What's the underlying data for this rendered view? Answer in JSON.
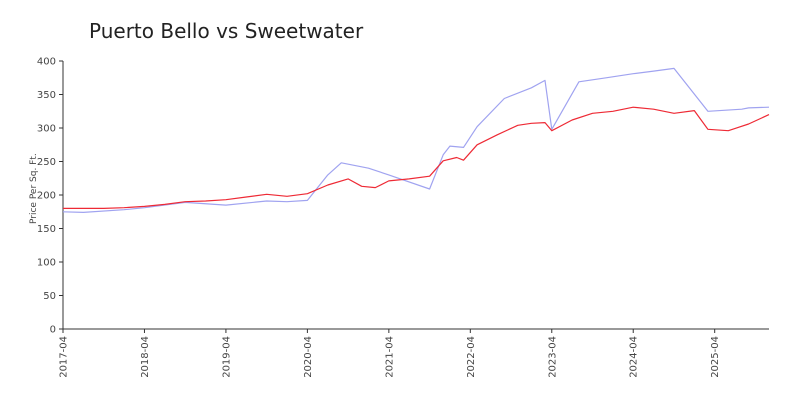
{
  "chart_data": {
    "type": "line",
    "title": "Puerto Bello vs Sweetwater",
    "xlabel": "",
    "ylabel": "Price Per Sq. Ft.",
    "ylim": [
      0,
      400
    ],
    "xlim": [
      "2017-04",
      "2025-12"
    ],
    "y_ticks": [
      0,
      50,
      100,
      150,
      200,
      250,
      300,
      350,
      400
    ],
    "x_ticks": [
      "2017-04",
      "2018-04",
      "2019-04",
      "2020-04",
      "2021-04",
      "2022-04",
      "2023-04",
      "2024-04",
      "2025-04"
    ],
    "grid": false,
    "legend": "none",
    "series": [
      {
        "color": "#ee2a35",
        "points": [
          [
            "2017-04",
            180
          ],
          [
            "2017-10",
            180
          ],
          [
            "2018-01",
            181
          ],
          [
            "2018-04",
            183
          ],
          [
            "2018-07",
            186
          ],
          [
            "2018-10",
            190
          ],
          [
            "2019-01",
            191
          ],
          [
            "2019-04",
            193
          ],
          [
            "2019-07",
            197
          ],
          [
            "2019-10",
            201
          ],
          [
            "2020-01",
            198
          ],
          [
            "2020-04",
            202
          ],
          [
            "2020-07",
            215
          ],
          [
            "2020-10",
            224
          ],
          [
            "2020-12",
            213
          ],
          [
            "2021-02",
            211
          ],
          [
            "2021-04",
            221
          ],
          [
            "2021-07",
            224
          ],
          [
            "2021-10",
            228
          ],
          [
            "2021-12",
            251
          ],
          [
            "2022-02",
            256
          ],
          [
            "2022-03",
            252
          ],
          [
            "2022-05",
            275
          ],
          [
            "2022-08",
            290
          ],
          [
            "2022-11",
            304
          ],
          [
            "2023-01",
            307
          ],
          [
            "2023-03",
            308
          ],
          [
            "2023-04",
            296
          ],
          [
            "2023-07",
            312
          ],
          [
            "2023-10",
            322
          ],
          [
            "2024-01",
            325
          ],
          [
            "2024-04",
            331
          ],
          [
            "2024-07",
            328
          ],
          [
            "2024-10",
            322
          ],
          [
            "2025-01",
            326
          ],
          [
            "2025-03",
            298
          ],
          [
            "2025-06",
            296
          ],
          [
            "2025-09",
            306
          ],
          [
            "2025-12",
            320
          ]
        ]
      },
      {
        "color": "#a0a3f0",
        "points": [
          [
            "2017-04",
            175
          ],
          [
            "2017-07",
            174
          ],
          [
            "2018-01",
            178
          ],
          [
            "2018-04",
            181
          ],
          [
            "2018-10",
            189
          ],
          [
            "2019-04",
            185
          ],
          [
            "2019-10",
            191
          ],
          [
            "2020-01",
            190
          ],
          [
            "2020-04",
            192
          ],
          [
            "2020-07",
            230
          ],
          [
            "2020-09",
            248
          ],
          [
            "2021-01",
            240
          ],
          [
            "2021-04",
            230
          ],
          [
            "2021-10",
            209
          ],
          [
            "2021-12",
            260
          ],
          [
            "2022-01",
            273
          ],
          [
            "2022-03",
            271
          ],
          [
            "2022-05",
            302
          ],
          [
            "2022-09",
            344
          ],
          [
            "2023-01",
            360
          ],
          [
            "2023-03",
            371
          ],
          [
            "2023-04",
            298
          ],
          [
            "2023-08",
            369
          ],
          [
            "2023-12",
            375
          ],
          [
            "2024-04",
            381
          ],
          [
            "2024-07",
            385
          ],
          [
            "2024-10",
            389
          ],
          [
            "2025-03",
            325
          ],
          [
            "2025-08",
            328
          ],
          [
            "2025-09",
            330
          ],
          [
            "2025-12",
            331
          ]
        ]
      }
    ]
  }
}
